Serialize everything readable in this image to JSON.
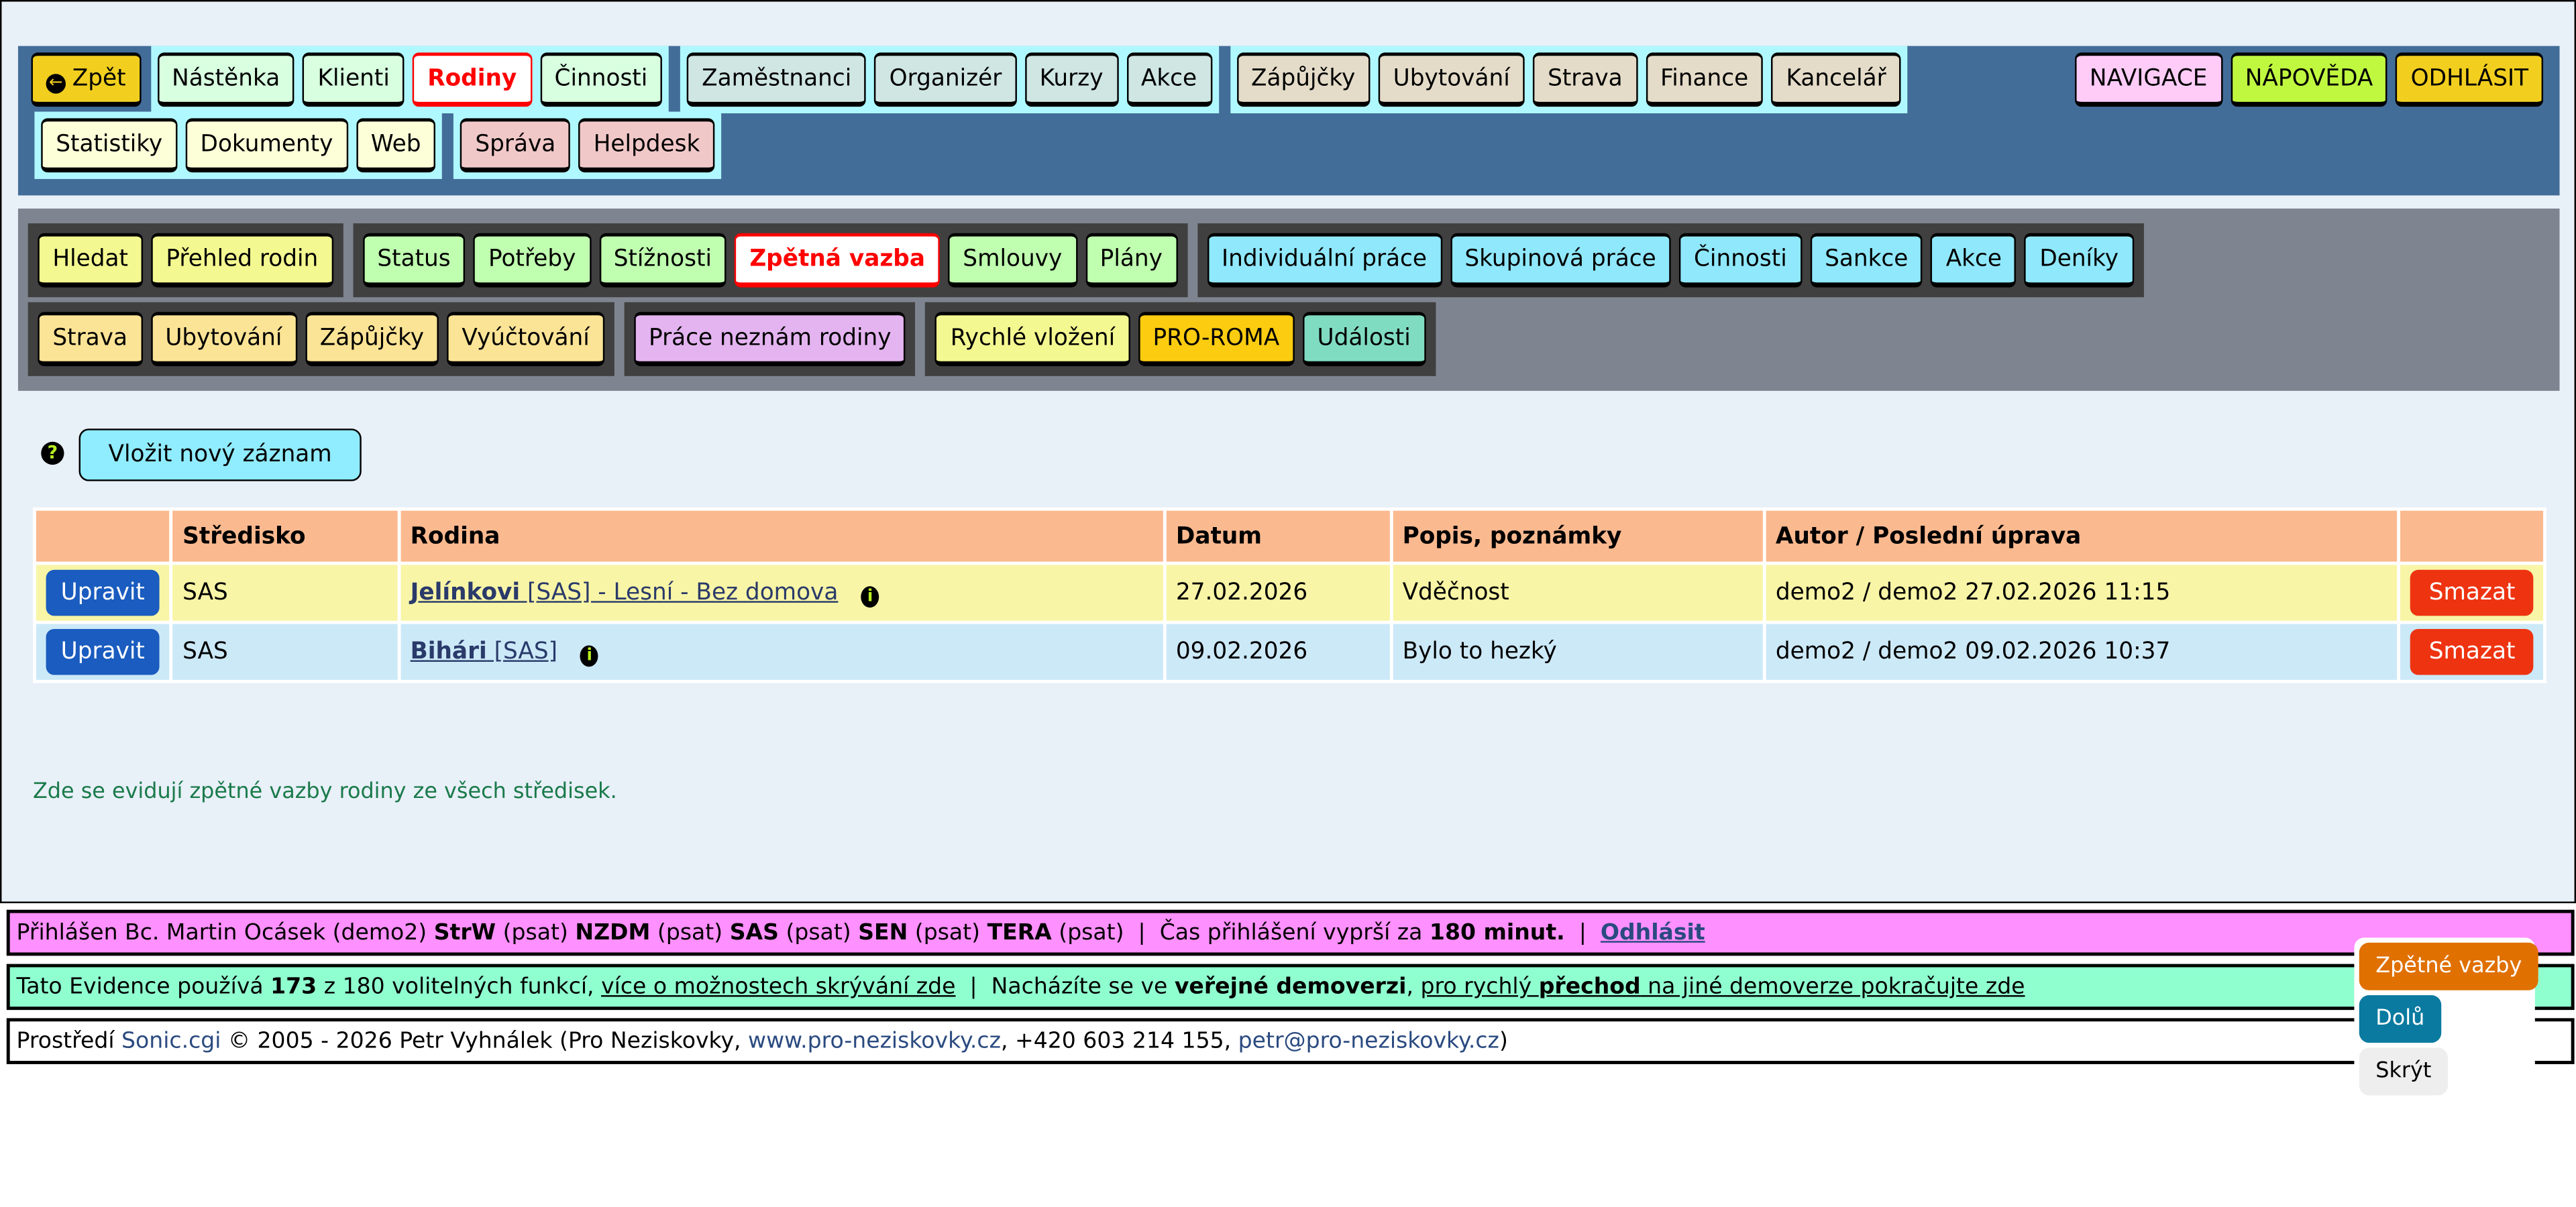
{
  "top_nav": {
    "back": "Zpět",
    "groups": [
      {
        "color": "#d8ffe0",
        "items": [
          "Nástěnka",
          "Klienti",
          "Rodiny",
          "Činnosti"
        ],
        "active": "Rodiny"
      },
      {
        "color": "#cfe6e2",
        "items": [
          "Zaměstnanci",
          "Organizér",
          "Kurzy",
          "Akce"
        ]
      },
      {
        "color": "#e4dcc8",
        "items": [
          "Zápůjčky",
          "Ubytování",
          "Strava",
          "Finance",
          "Kancelář"
        ]
      }
    ],
    "groups_row2": [
      {
        "color": "#fcffd8",
        "items": [
          "Statistiky",
          "Dokumenty",
          "Web"
        ]
      },
      {
        "color": "#f1c8c8",
        "items": [
          "Správa",
          "Helpdesk"
        ]
      }
    ],
    "right": [
      {
        "label": "NAVIGACE",
        "color": "#ffccf8"
      },
      {
        "label": "NÁPOVĚDA",
        "color": "#c0f840"
      },
      {
        "label": "ODHLÁSIT",
        "color": "#f2cf1f"
      }
    ]
  },
  "sub_nav": {
    "row1": [
      {
        "color": "#f4f890",
        "items": [
          "Hledat",
          "Přehled rodin"
        ]
      },
      {
        "color": "#c0ffb0",
        "items": [
          "Status",
          "Potřeby",
          "Stížnosti",
          "Zpětná vazba",
          "Smlouvy",
          "Plány"
        ],
        "active": "Zpětná vazba"
      },
      {
        "color": "#90e8fc",
        "items": [
          "Individuální práce",
          "Skupinová práce",
          "Činnosti",
          "Sankce",
          "Akce",
          "Deníky"
        ]
      }
    ],
    "row2": [
      {
        "color": "#fce496",
        "items": [
          "Strava",
          "Ubytování",
          "Zápůjčky",
          "Vyúčtování"
        ]
      },
      {
        "color": "#e4b4f0",
        "items": [
          "Práce neznám rodiny"
        ]
      },
      {
        "color": "#f4f890",
        "items": [
          "Rychlé vložení"
        ],
        "extra": [
          {
            "label": "PRO-ROMA",
            "color": "#fccc10"
          },
          {
            "label": "Události",
            "color": "#80dcc0"
          }
        ]
      }
    ]
  },
  "main": {
    "help_icon": "?",
    "insert_label": "Vložit nový záznam",
    "columns": [
      "",
      "Středisko",
      "Rodina",
      "Datum",
      "Popis, poznámky",
      "Autor / Poslední úprava",
      ""
    ],
    "rows": [
      {
        "edit": "Upravit",
        "stredisko": "SAS",
        "family_name": "Jelínkovi",
        "family_rest": " [SAS] - Lesní - Bez domova",
        "datum": "27.02.2026",
        "popis": "Vděčnost",
        "autor": "demo2 / demo2 27.02.2026 11:15",
        "delete": "Smazat"
      },
      {
        "edit": "Upravit",
        "stredisko": "SAS",
        "family_name": "Bihári",
        "family_rest": " [SAS]",
        "datum": "09.02.2026",
        "popis": "Bylo to hezký",
        "autor": "demo2 / demo2 09.02.2026 10:37",
        "delete": "Smazat"
      }
    ],
    "note": "Zde se evidují zpětné vazby rodiny ze všech středisek."
  },
  "footer": {
    "login": {
      "prefix": "Přihlášen Bc. Martin Ocásek (demo2) ",
      "r1": "StrW",
      "p1": " (psat) ",
      "r2": "NZDM",
      "p2": " (psat) ",
      "r3": "SAS",
      "p3": " (psat) ",
      "r4": "SEN",
      "p4": " (psat) ",
      "r5": "TERA",
      "p5": " (psat)  |  Čas přihlášení vyprší za ",
      "minutes": "180 minut.",
      "sep": "  |  ",
      "logout": "Odhlásit"
    },
    "features": {
      "t1": "Tato Evidence používá ",
      "used": "173",
      "t2": " z 180 volitelných funkcí, ",
      "link1": "více o možnostech skrývání zde",
      "t3": "  |  Nacházíte se ve ",
      "demo": "veřejné demoverzi",
      "t4": ", ",
      "link2a": "pro rychlý ",
      "link2b": "přechod",
      "link2c": " na jiné demoverze pokračujte zde"
    },
    "credits": {
      "t1": "Prostředí ",
      "sonic": "Sonic.cgi",
      "t2": " © 2005 - 2026 Petr Vyhnálek (Pro Neziskovky, ",
      "web": "www.pro-neziskovky.cz",
      "t3": ", +420 603 214 155, ",
      "mail": "petr@pro-neziskovky.cz",
      "t4": ")"
    }
  },
  "widget": {
    "feedback": "Zpětné vazby",
    "down": "Dolů",
    "hide": "Skrýt",
    "colors": {
      "feedback": "#e07000",
      "down": "#0a7aa0",
      "hide": "#eeeeee"
    }
  }
}
